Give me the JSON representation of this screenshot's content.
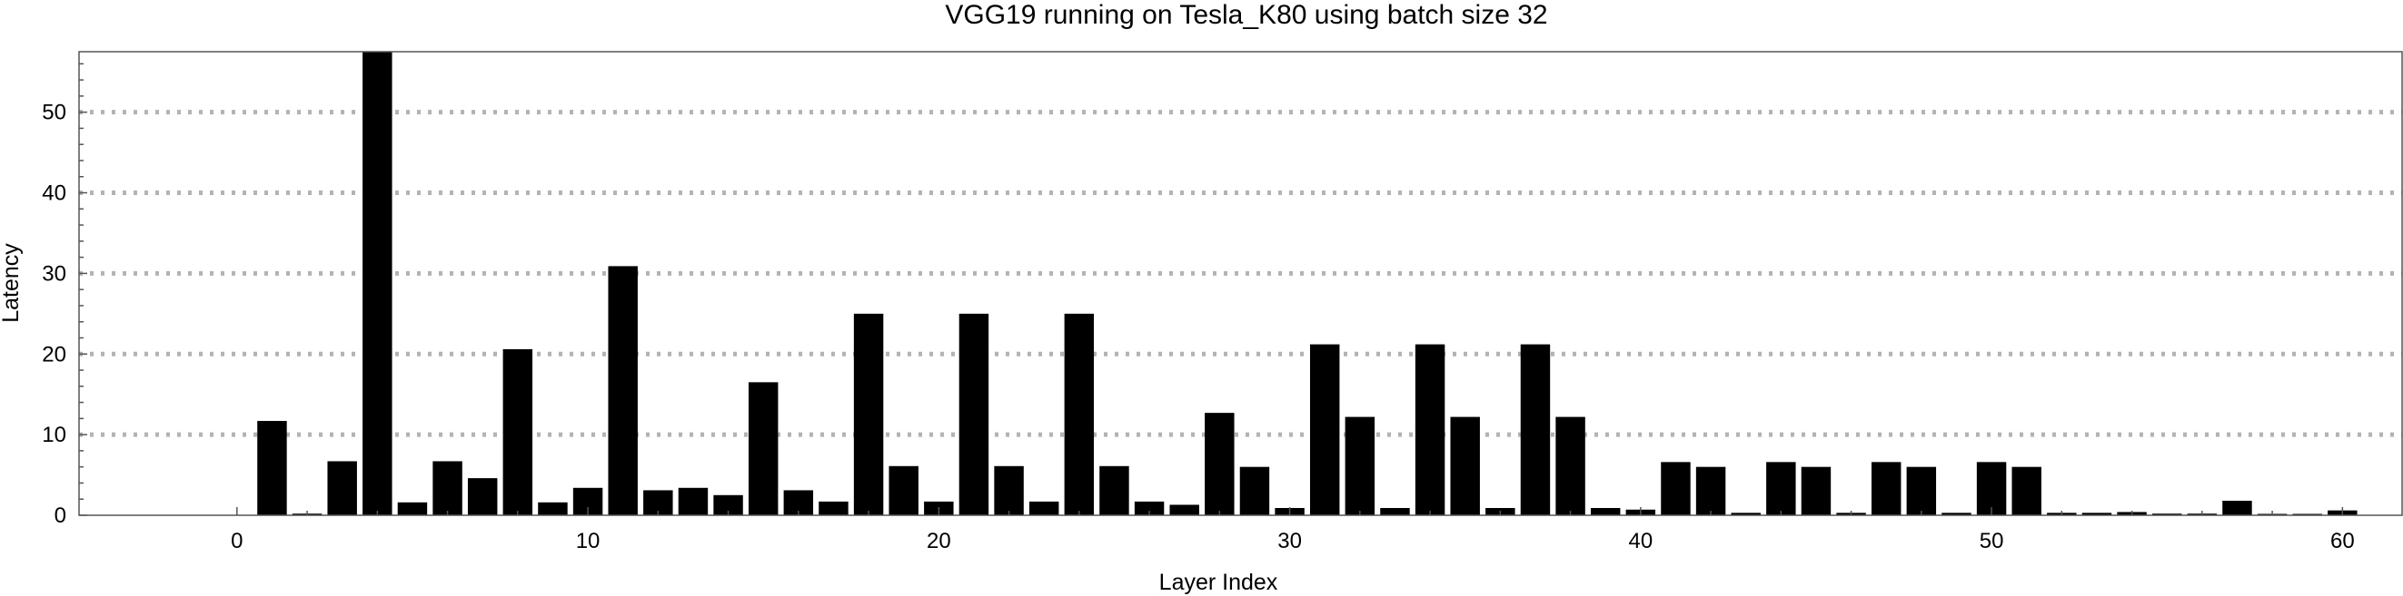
{
  "chart_data": {
    "type": "bar",
    "title": "VGG19 running on Tesla_K80 using batch size 32",
    "xlabel": "Layer Index",
    "ylabel": "Latency",
    "xlim": [
      -4.5,
      61.7
    ],
    "ylim": [
      0,
      57.5
    ],
    "xticks": [
      0,
      10,
      20,
      30,
      40,
      50,
      60
    ],
    "yticks": [
      0,
      10,
      20,
      30,
      40,
      50
    ],
    "grid": "horizontal-dotted",
    "legend": "none",
    "bar_color": "#000000",
    "x": [
      0,
      1,
      2,
      3,
      4,
      5,
      6,
      7,
      8,
      9,
      10,
      11,
      12,
      13,
      14,
      15,
      16,
      17,
      18,
      19,
      20,
      21,
      22,
      23,
      24,
      25,
      26,
      27,
      28,
      29,
      30,
      31,
      32,
      33,
      34,
      35,
      36,
      37,
      38,
      39,
      40,
      41,
      42,
      43,
      44,
      45,
      46,
      47,
      48,
      49,
      50,
      51,
      52,
      53,
      54,
      55,
      56,
      57,
      58,
      59,
      60
    ],
    "values": [
      0,
      11.7,
      0.2,
      6.7,
      57.5,
      1.6,
      6.7,
      4.6,
      20.6,
      1.6,
      3.4,
      30.9,
      3.1,
      3.4,
      2.5,
      16.5,
      3.1,
      1.7,
      25.0,
      6.1,
      1.7,
      25.0,
      6.1,
      1.7,
      25.0,
      6.1,
      1.7,
      1.3,
      12.7,
      6.0,
      0.9,
      21.2,
      12.2,
      0.9,
      21.2,
      12.2,
      0.9,
      21.2,
      12.2,
      0.9,
      0.7,
      6.6,
      6.0,
      0.3,
      6.6,
      6.0,
      0.3,
      6.6,
      6.0,
      0.3,
      6.6,
      6.0,
      0.3,
      0.3,
      0.4,
      0.2,
      0.2,
      1.8,
      0.1,
      0.1,
      0.6
    ]
  }
}
